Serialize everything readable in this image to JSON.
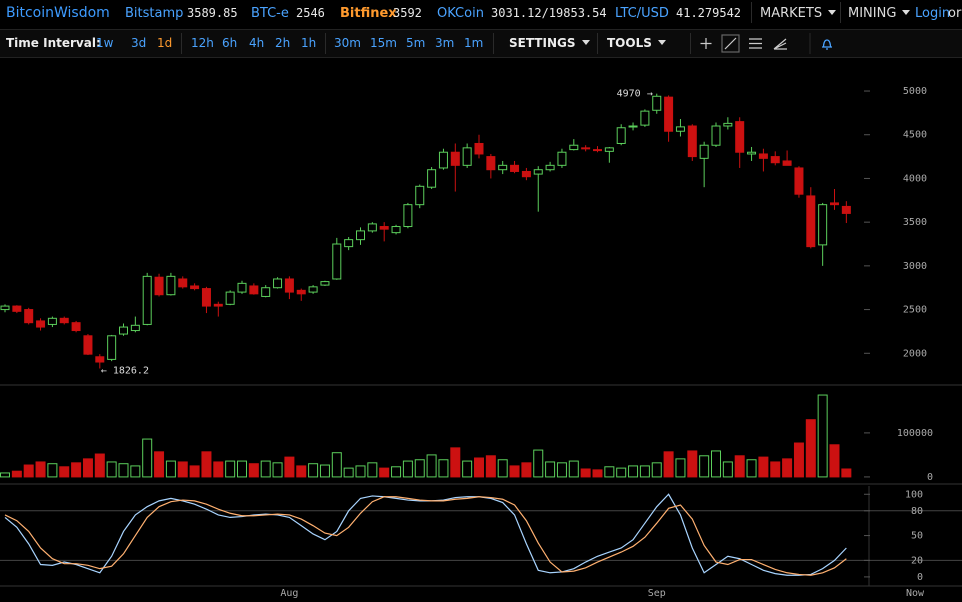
{
  "header": {
    "brand": "BitcoinWisdom",
    "tickers": [
      {
        "name": "Bitstamp",
        "price": "3589.85",
        "color": "#4aa3ff"
      },
      {
        "name": "BTC-e",
        "price": "2546",
        "color": "#4aa3ff"
      },
      {
        "name": "Bitfinex",
        "price": "3592",
        "color": "#ff9a2e"
      },
      {
        "name": "OKCoin",
        "price": "3031.12/19853.54",
        "color": "#4aa3ff"
      },
      {
        "name": "LTC/USD",
        "price": "41.279542",
        "color": "#4aa3ff"
      }
    ],
    "menus": [
      "MARKETS",
      "MINING"
    ],
    "login": "Login",
    "or": "or"
  },
  "toolbar": {
    "label": "Time Interval:",
    "intervals": [
      "1w",
      "3d",
      "1d",
      "12h",
      "6h",
      "4h",
      "2h",
      "1h",
      "30m",
      "15m",
      "5m",
      "3m",
      "1m"
    ],
    "selected": "1d",
    "settings": "SETTINGS",
    "tools": "TOOLS"
  },
  "chart_data": [
    {
      "type": "candlestick",
      "up_color": "#5ccf5c",
      "down_color": "#cc1111",
      "ylim": [
        1660,
        5355
      ],
      "yticks": [
        2000,
        2500,
        3000,
        3500,
        4000,
        4500,
        5000
      ],
      "max_label": "4970 →",
      "min_label": "← 1826.2",
      "open": [
        2500,
        2540,
        2500,
        2370,
        2330,
        2400,
        2350,
        2200,
        1960,
        1930,
        2220,
        2260,
        2330,
        2870,
        2670,
        2850,
        2770,
        2740,
        2560,
        2560,
        2700,
        2770,
        2650,
        2750,
        2850,
        2720,
        2700,
        2780,
        2850,
        3220,
        3300,
        3400,
        3450,
        3380,
        3450,
        3700,
        3900,
        4120,
        4300,
        4150,
        4400,
        4250,
        4100,
        4150,
        4080,
        4050,
        4100,
        4150,
        4330,
        4350,
        4330,
        4310,
        4400,
        4590,
        4610,
        4780,
        4930,
        4540,
        4600,
        4230,
        4380,
        4600,
        4650,
        4280,
        4280,
        4250,
        4200,
        4120,
        3800,
        3240,
        3720,
        3680
      ],
      "high": [
        2560,
        2550,
        2520,
        2400,
        2420,
        2420,
        2370,
        2220,
        1990,
        2210,
        2340,
        2420,
        2920,
        2910,
        2920,
        2880,
        2800,
        2760,
        2590,
        2720,
        2830,
        2800,
        2780,
        2870,
        2880,
        2740,
        2780,
        2830,
        3320,
        3330,
        3440,
        3500,
        3500,
        3470,
        3720,
        3930,
        4130,
        4340,
        4400,
        4400,
        4500,
        4280,
        4200,
        4200,
        4120,
        4140,
        4190,
        4340,
        4450,
        4380,
        4370,
        4360,
        4620,
        4640,
        4790,
        4970,
        4950,
        4680,
        4620,
        4420,
        4640,
        4700,
        4700,
        4360,
        4340,
        4310,
        4320,
        4140,
        3900,
        3720,
        3880,
        3740
      ],
      "low": [
        2470,
        2460,
        2330,
        2260,
        2300,
        2330,
        2240,
        1980,
        1826.2,
        1910,
        2200,
        2240,
        2320,
        2650,
        2660,
        2740,
        2720,
        2460,
        2420,
        2550,
        2680,
        2670,
        2640,
        2740,
        2620,
        2600,
        2680,
        2770,
        2840,
        3180,
        3240,
        3380,
        3280,
        3360,
        3430,
        3660,
        3880,
        4100,
        3850,
        4120,
        4230,
        4000,
        4050,
        4060,
        3980,
        3620,
        4080,
        4120,
        4320,
        4310,
        4300,
        4180,
        4380,
        4550,
        4590,
        4740,
        4420,
        4480,
        4200,
        3900,
        4360,
        4560,
        4120,
        4200,
        4080,
        4150,
        4150,
        3780,
        3200,
        3000,
        3640,
        3490
      ],
      "close": [
        2540,
        2480,
        2350,
        2300,
        2400,
        2350,
        2260,
        1990,
        1900,
        2200,
        2300,
        2320,
        2880,
        2670,
        2880,
        2760,
        2740,
        2540,
        2540,
        2700,
        2800,
        2680,
        2750,
        2850,
        2700,
        2680,
        2760,
        2820,
        3250,
        3300,
        3400,
        3480,
        3420,
        3450,
        3700,
        3910,
        4100,
        4300,
        4150,
        4350,
        4280,
        4100,
        4150,
        4080,
        4020,
        4100,
        4150,
        4300,
        4380,
        4340,
        4320,
        4350,
        4580,
        4600,
        4770,
        4940,
        4540,
        4590,
        4250,
        4380,
        4600,
        4630,
        4300,
        4300,
        4230,
        4180,
        4150,
        3820,
        3220,
        3700,
        3700,
        3600
      ]
    },
    {
      "type": "bar",
      "ylim": [
        -7000,
        202000
      ],
      "yticks": [
        0,
        100000
      ],
      "values": [
        9000,
        13000,
        27000,
        34000,
        30000,
        23000,
        32000,
        41000,
        52000,
        34000,
        30000,
        25000,
        86000,
        57000,
        36000,
        34000,
        25000,
        57000,
        34000,
        36000,
        36000,
        30000,
        36000,
        32000,
        45000,
        25000,
        30000,
        27000,
        55000,
        20000,
        25000,
        32000,
        20000,
        23000,
        36000,
        39000,
        50000,
        39000,
        66000,
        36000,
        43000,
        48000,
        39000,
        25000,
        32000,
        61000,
        34000,
        32000,
        36000,
        18000,
        16000,
        23000,
        20000,
        25000,
        25000,
        32000,
        57000,
        41000,
        59000,
        48000,
        59000,
        34000,
        48000,
        39000,
        45000,
        34000,
        41000,
        77000,
        130000,
        186000,
        73000,
        18000
      ]
    },
    {
      "type": "line",
      "ylim": [
        -11,
        110
      ],
      "yticks": [
        0,
        20,
        50,
        80,
        100
      ],
      "band_lines": [
        20,
        80
      ],
      "x_end_label": "Now",
      "categories": [
        null,
        null,
        null,
        null,
        null,
        null,
        null,
        null,
        null,
        null,
        null,
        null,
        null,
        null,
        null,
        null,
        null,
        null,
        null,
        null,
        null,
        null,
        null,
        null,
        "Aug",
        null,
        null,
        null,
        null,
        null,
        null,
        null,
        null,
        null,
        null,
        null,
        null,
        null,
        null,
        null,
        null,
        null,
        null,
        null,
        null,
        null,
        null,
        null,
        null,
        null,
        null,
        null,
        null,
        null,
        null,
        "Sep",
        null,
        null,
        null,
        null,
        null,
        null,
        null,
        null,
        null,
        null,
        null,
        null,
        null,
        null,
        null,
        null
      ],
      "series": [
        {
          "color": "#a8d4ff",
          "values": [
            72,
            60,
            40,
            15,
            14,
            18,
            15,
            10,
            5,
            25,
            55,
            75,
            85,
            92,
            95,
            92,
            88,
            82,
            75,
            72,
            73,
            75,
            76,
            75,
            72,
            62,
            52,
            45,
            55,
            80,
            95,
            98,
            97,
            95,
            93,
            92,
            92,
            93,
            96,
            97,
            97,
            95,
            90,
            75,
            40,
            8,
            5,
            6,
            10,
            18,
            25,
            30,
            35,
            45,
            65,
            85,
            100,
            75,
            35,
            5,
            15,
            25,
            22,
            15,
            8,
            4,
            2,
            2,
            3,
            10,
            20,
            35
          ]
        },
        {
          "color": "#ffb070",
          "values": [
            75,
            68,
            55,
            35,
            22,
            16,
            16,
            14,
            10,
            13,
            28,
            50,
            72,
            85,
            91,
            93,
            92,
            88,
            82,
            77,
            74,
            74,
            75,
            76,
            75,
            70,
            62,
            53,
            50,
            60,
            77,
            91,
            97,
            97,
            95,
            93,
            92,
            92,
            94,
            95,
            97,
            96,
            94,
            87,
            68,
            41,
            18,
            6,
            7,
            11,
            18,
            24,
            30,
            37,
            48,
            65,
            83,
            87,
            70,
            38,
            18,
            15,
            21,
            21,
            15,
            9,
            5,
            3,
            2,
            5,
            11,
            22
          ]
        }
      ]
    }
  ]
}
